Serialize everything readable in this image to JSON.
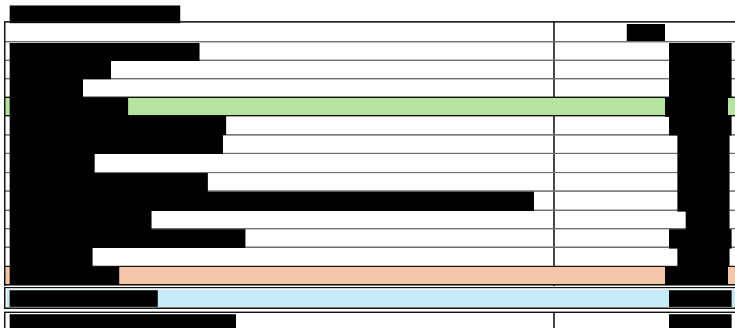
{
  "document": {
    "title_redacted": true,
    "table": {
      "header": {
        "label_redacted": true,
        "value_redacted": true
      },
      "rows": [
        {
          "highlight": "none"
        },
        {
          "highlight": "none"
        },
        {
          "highlight": "none"
        },
        {
          "highlight": "green"
        },
        {
          "highlight": "none"
        },
        {
          "highlight": "none"
        },
        {
          "highlight": "none"
        },
        {
          "highlight": "none"
        },
        {
          "highlight": "none"
        },
        {
          "highlight": "none"
        },
        {
          "highlight": "none"
        },
        {
          "highlight": "none"
        },
        {
          "highlight": "orange"
        }
      ],
      "summary_row": {
        "highlight": "blue"
      },
      "footer_row": {
        "highlight": "none"
      }
    },
    "colors": {
      "green_highlight": "#b5e3a0",
      "orange_highlight": "#f4c6a9",
      "blue_highlight": "#c6eaf6",
      "redaction": "#000000"
    }
  }
}
